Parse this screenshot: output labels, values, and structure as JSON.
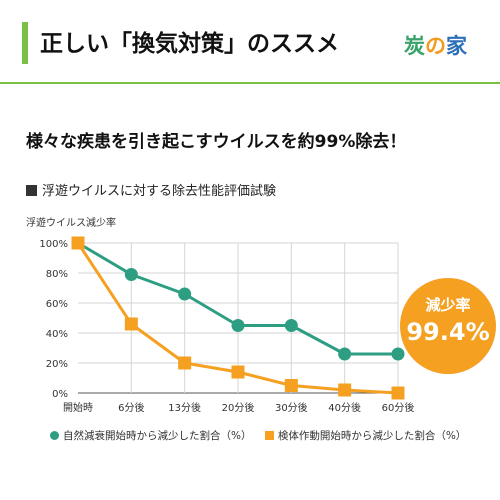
{
  "header": {
    "title": "正しい「換気対策」のススメ",
    "logo": [
      "炭",
      "の",
      "家"
    ]
  },
  "headline": "様々な疾患を引き起こすウイルスを約99%除去！",
  "colors": {
    "accent_green": "#7ac143",
    "series_natural": "#2e9e83",
    "series_device": "#f5a020"
  },
  "badge": {
    "label": "減少率",
    "value": "99.4%"
  },
  "chart_data": {
    "type": "line",
    "title": "浮遊ウイルスに対する除去性能評価試験",
    "ylabel": "浮遊ウイルス減少率",
    "categories": [
      "開始時",
      "6分後",
      "13分後",
      "20分後",
      "30分後",
      "40分後",
      "60分後"
    ],
    "ylim": [
      0,
      100
    ],
    "yticks": [
      "0%",
      "20%",
      "40%",
      "60%",
      "80%",
      "100%"
    ],
    "grid": true,
    "legend_position": "bottom",
    "series": [
      {
        "name": "自然減衰開始時から減少した割合（%）",
        "marker": "circle",
        "color": "#2e9e83",
        "values": [
          100,
          79,
          66,
          45,
          45,
          26,
          26
        ]
      },
      {
        "name": "検体作動開始時から減少した割合（%）",
        "marker": "square",
        "color": "#f5a020",
        "values": [
          100,
          46,
          20,
          14,
          5,
          2,
          0
        ]
      }
    ]
  }
}
